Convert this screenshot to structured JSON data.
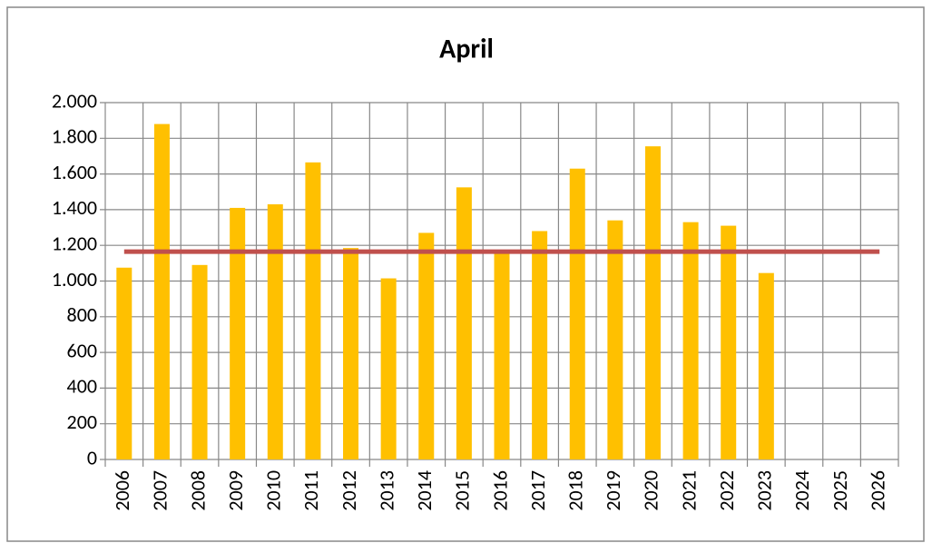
{
  "chart_data": {
    "type": "bar",
    "title": "April",
    "categories": [
      "2006",
      "2007",
      "2008",
      "2009",
      "2010",
      "2011",
      "2012",
      "2013",
      "2014",
      "2015",
      "2016",
      "2017",
      "2018",
      "2019",
      "2020",
      "2021",
      "2022",
      "2023",
      "2024",
      "2025",
      "2026"
    ],
    "series": [
      {
        "type": "bar",
        "color": "#ffc000",
        "values": [
          1075,
          1880,
          1090,
          1410,
          1430,
          1665,
          1185,
          1015,
          1270,
          1525,
          1160,
          1280,
          1630,
          1340,
          1755,
          1330,
          1310,
          1045,
          null,
          null,
          null
        ]
      },
      {
        "type": "line",
        "color": "#c0504d",
        "values": [
          1165,
          1165,
          1165,
          1165,
          1165,
          1165,
          1165,
          1165,
          1165,
          1165,
          1165,
          1165,
          1165,
          1165,
          1165,
          1165,
          1165,
          1165,
          1165,
          1165,
          1165
        ]
      }
    ],
    "ylim": [
      0,
      2000
    ],
    "yticks": [
      0,
      200,
      400,
      600,
      800,
      {
        "value": 1000,
        "label": "1.000"
      },
      {
        "value": 1200,
        "label": "1.200"
      },
      {
        "value": 1400,
        "label": "1.400"
      },
      {
        "value": 1600,
        "label": "1.600"
      },
      {
        "value": 1800,
        "label": "1.800"
      },
      {
        "value": 2000,
        "label": "2.000"
      }
    ],
    "grid": true
  }
}
